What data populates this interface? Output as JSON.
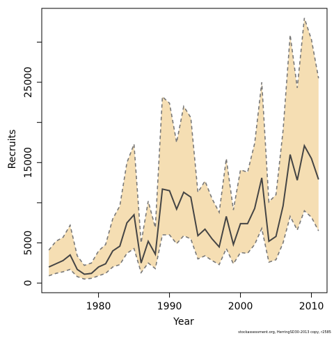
{
  "chart_data": {
    "type": "area",
    "xlabel": "Year",
    "ylabel": "Recruits",
    "xlim": [
      1972,
      2012.2
    ],
    "ylim": [
      -1200,
      34200
    ],
    "x_ticks": [
      1980,
      1990,
      2000,
      2010
    ],
    "y_ticks": [
      0,
      5000,
      15000,
      25000
    ],
    "y_minor_ticks": [
      10000,
      20000,
      30000
    ],
    "grid": false,
    "legend": "none",
    "colors": {
      "band_fill": "#f5deb3",
      "band_edge": "#777777",
      "median_line": "#444444",
      "axis": "#000000"
    },
    "series": [
      {
        "role": "median",
        "x": [
          1973,
          1974,
          1975,
          1976,
          1977,
          1978,
          1979,
          1980,
          1981,
          1982,
          1983,
          1984,
          1985,
          1986,
          1987,
          1988,
          1989,
          1990,
          1991,
          1992,
          1993,
          1994,
          1995,
          1996,
          1997,
          1998,
          1999,
          2000,
          2001,
          2002,
          2003,
          2004,
          2005,
          2006,
          2007,
          2008,
          2009,
          2010,
          2011
        ],
        "values": [
          2000,
          2400,
          2800,
          3500,
          1700,
          1100,
          1200,
          2000,
          2400,
          4000,
          4600,
          7500,
          8500,
          2500,
          5200,
          3600,
          11700,
          11500,
          9200,
          11300,
          10700,
          5900,
          6700,
          5500,
          4500,
          8300,
          4800,
          7400,
          7400,
          9300,
          13100,
          5200,
          5800,
          9600,
          16000,
          12800,
          17100,
          15500,
          12900
        ]
      },
      {
        "role": "upper",
        "x": [
          1973,
          1974,
          1975,
          1976,
          1977,
          1978,
          1979,
          1980,
          1981,
          1982,
          1983,
          1984,
          1985,
          1986,
          1987,
          1988,
          1989,
          1990,
          1991,
          1992,
          1993,
          1994,
          1995,
          1996,
          1997,
          1998,
          1999,
          2000,
          2001,
          2002,
          2003,
          2004,
          2005,
          2006,
          2007,
          2008,
          2009,
          2010,
          2011
        ],
        "values": [
          4100,
          5200,
          5700,
          7200,
          3400,
          2200,
          2500,
          4000,
          4800,
          8000,
          9600,
          15000,
          17300,
          5000,
          10200,
          6900,
          23200,
          22400,
          17500,
          22000,
          20600,
          11300,
          12700,
          10500,
          8800,
          15500,
          9100,
          14100,
          13800,
          17400,
          25000,
          10100,
          11000,
          19000,
          30900,
          24300,
          33000,
          30300,
          25500
        ]
      },
      {
        "role": "lower",
        "x": [
          1973,
          1974,
          1975,
          1976,
          1977,
          1978,
          1979,
          1980,
          1981,
          1982,
          1983,
          1984,
          1985,
          1986,
          1987,
          1988,
          1989,
          1990,
          1991,
          1992,
          1993,
          1994,
          1995,
          1996,
          1997,
          1998,
          1999,
          2000,
          2001,
          2002,
          2003,
          2004,
          2005,
          2006,
          2007,
          2008,
          2009,
          2010,
          2011
        ],
        "values": [
          900,
          1200,
          1400,
          1700,
          800,
          500,
          600,
          900,
          1200,
          2000,
          2300,
          3700,
          4300,
          1300,
          2500,
          1800,
          6000,
          6000,
          4900,
          5900,
          5500,
          3000,
          3400,
          2800,
          2300,
          4300,
          2400,
          3800,
          3700,
          4800,
          6800,
          2600,
          2900,
          5000,
          8300,
          6600,
          9000,
          8200,
          6500
        ]
      }
    ]
  },
  "footer": {
    "caption": "stockassessment.org, HerringSD30-2013 copy, r2585"
  }
}
